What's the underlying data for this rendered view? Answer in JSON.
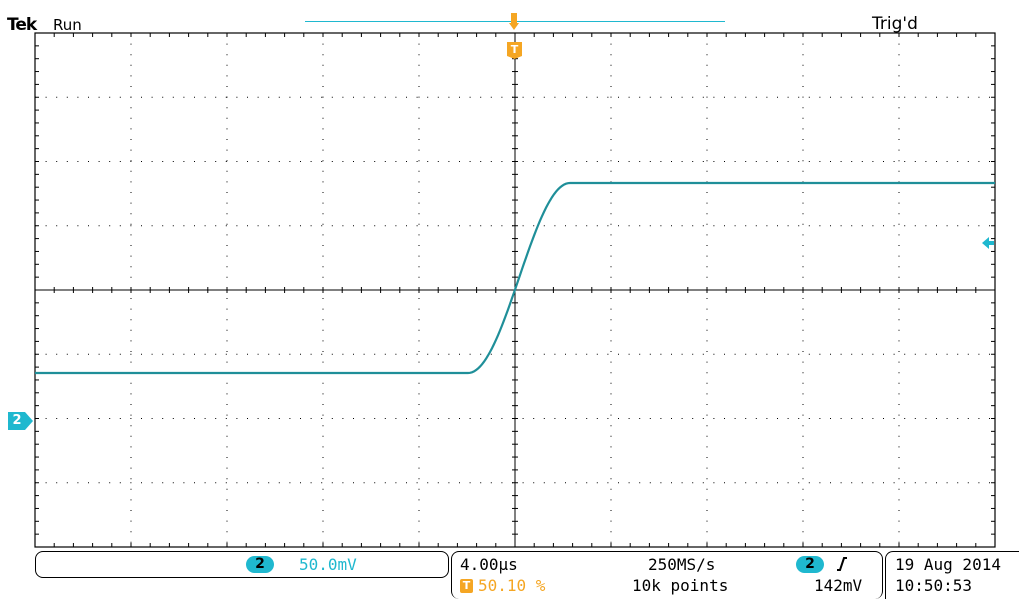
{
  "header": {
    "brand": "Tek",
    "acq_state": "Run",
    "trigger_status": "Trig'd"
  },
  "markers": {
    "trigger_position_label": "T",
    "channel_ground_label": "2"
  },
  "status_bar": {
    "channel": {
      "number": "2",
      "scale": "50.0mV"
    },
    "timebase": {
      "time_per_div": "4.00µs",
      "trigger_position": "50.10 %",
      "trigger_icon": "T"
    },
    "acquisition": {
      "sample_rate": "250MS/s",
      "record_length": "10k points"
    },
    "trigger": {
      "source": "2",
      "slope_icon": "rising-edge-icon",
      "level": "142mV"
    },
    "datetime": {
      "date": "19 Aug 2014",
      "time": "10:50:53"
    }
  },
  "colors": {
    "channel2": "#1fb8cf",
    "trigger": "#f5a623",
    "trace": "#1f8f99",
    "graticule": "#000000"
  }
}
